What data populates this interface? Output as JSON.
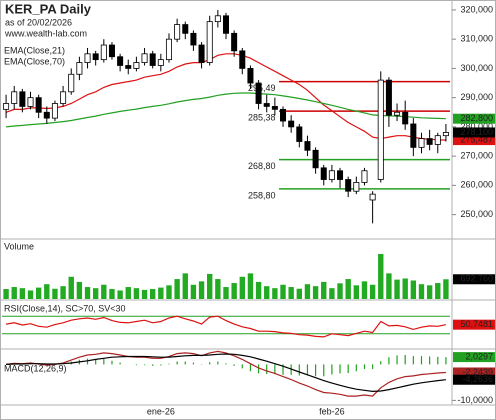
{
  "chart_data": [
    {
      "type": "candlestick",
      "title": "KER_PA Daily",
      "subtitle": "as of 20/02/2026",
      "source": "www.wealth-lab.com",
      "categories": [
        null,
        null,
        null,
        null,
        null,
        null,
        null,
        null,
        null,
        null,
        null,
        null,
        null,
        null,
        null,
        null,
        null,
        null,
        null,
        "ene-26",
        null,
        null,
        null,
        null,
        null,
        null,
        null,
        null,
        null,
        null,
        null,
        null,
        null,
        null,
        null,
        null,
        null,
        null,
        null,
        null,
        "feb-26",
        null,
        null,
        null,
        null,
        null,
        null,
        null,
        null,
        null,
        null,
        null,
        null,
        null,
        null
      ],
      "open": [
        286,
        288,
        292,
        287,
        290,
        285,
        283,
        288,
        292,
        298,
        302,
        305,
        303,
        308,
        304,
        301,
        300,
        302,
        305,
        301,
        303,
        310,
        315,
        312,
        308,
        302,
        316,
        318,
        312,
        306,
        300,
        295,
        288,
        287,
        286,
        282,
        280,
        275,
        272,
        266,
        262,
        265,
        262,
        258,
        261,
        255,
        262,
        296,
        284,
        285,
        281,
        273,
        276,
        274,
        277
      ],
      "high": [
        291,
        294,
        293,
        292,
        291,
        287,
        289,
        294,
        300,
        304,
        307,
        306,
        310,
        309,
        305,
        303,
        304,
        307,
        306,
        305,
        312,
        317,
        316,
        313,
        309,
        318,
        320,
        319,
        313,
        307,
        301,
        296,
        291,
        290,
        287,
        284,
        281,
        277,
        273,
        267,
        267,
        266,
        263,
        263,
        266,
        258,
        299,
        297,
        288,
        289,
        283,
        278,
        279,
        278,
        281
      ],
      "low": [
        283,
        286,
        285,
        286,
        283,
        281,
        282,
        287,
        291,
        296,
        300,
        301,
        302,
        303,
        299,
        298,
        299,
        301,
        300,
        299,
        302,
        309,
        310,
        306,
        300,
        301,
        314,
        310,
        304,
        298,
        293,
        286,
        285,
        284,
        280,
        278,
        273,
        270,
        264,
        260,
        261,
        259,
        256,
        257,
        260,
        247,
        261,
        280,
        282,
        279,
        270,
        271,
        272,
        271,
        275
      ],
      "close": [
        288,
        292,
        287,
        290,
        285,
        283,
        288,
        292,
        298,
        302,
        305,
        303,
        308,
        304,
        301,
        300,
        302,
        305,
        301,
        303,
        310,
        315,
        312,
        308,
        302,
        316,
        318,
        312,
        306,
        300,
        295,
        288,
        287,
        286,
        282,
        280,
        275,
        272,
        266,
        262,
        265,
        262,
        258,
        261,
        265,
        257,
        296,
        284,
        285,
        281,
        273,
        276,
        274,
        277,
        278.1
      ],
      "close_labels": {
        "54": "278,100"
      },
      "up_color": "#ffffff",
      "down_color": "#000000",
      "series": [
        {
          "name": "EMA(Close,21)",
          "color": "#dd1111",
          "values": [
            285,
            286,
            286,
            286.5,
            286.5,
            286.3,
            286.5,
            287,
            288,
            289.5,
            291,
            292,
            293.5,
            294.5,
            295,
            295.5,
            296,
            297,
            297.5,
            298,
            299,
            300.5,
            301.5,
            302,
            302,
            303,
            304.5,
            305,
            305,
            304.5,
            303.5,
            302,
            300.5,
            299,
            297.5,
            296,
            294.5,
            292.5,
            290,
            287.5,
            285.5,
            283.5,
            281.5,
            280,
            278.5,
            276.5,
            276,
            276.5,
            277,
            277,
            276.5,
            276,
            275.8,
            275.6,
            275.487
          ],
          "value_labels": {
            "54": "275,487"
          }
        },
        {
          "name": "EMA(Close,70)",
          "color": "#22a022",
          "values": [
            280,
            280.3,
            280.5,
            280.8,
            281,
            281.2,
            281.5,
            281.8,
            282.2,
            282.7,
            283.2,
            283.7,
            284.3,
            284.8,
            285.3,
            285.7,
            286.1,
            286.6,
            287,
            287.4,
            287.9,
            288.5,
            289,
            289.4,
            289.7,
            290.2,
            290.8,
            291.2,
            291.5,
            291.6,
            291.6,
            291.4,
            291.2,
            291,
            290.6,
            290.2,
            289.7,
            289.2,
            288.6,
            288,
            287.4,
            286.7,
            286,
            285.4,
            284.8,
            284.1,
            283.9,
            283.8,
            283.7,
            283.5,
            283.3,
            283.1,
            283,
            282.9,
            282.8
          ],
          "value_labels": {
            "54": "282,800"
          }
        }
      ],
      "levels": [
        {
          "value": 295.49,
          "label": "295,49",
          "color": "#cc0000"
        },
        {
          "value": 285.38,
          "label": "285,38",
          "color": "#cc0000"
        },
        {
          "value": 268.8,
          "label": "268,80",
          "color": "#22a022"
        },
        {
          "value": 258.8,
          "label": "258,80",
          "color": "#22a022"
        }
      ],
      "ylim": [
        242,
        323.4
      ],
      "yticks": [
        {
          "value": 250,
          "label": "250,000"
        },
        {
          "value": 260,
          "label": "260,000"
        },
        {
          "value": 270,
          "label": "270,000"
        },
        {
          "value": 280,
          "label": "280,000"
        },
        {
          "value": 290,
          "label": "290,000"
        },
        {
          "value": 300,
          "label": "300,000"
        },
        {
          "value": 310,
          "label": "310,000"
        },
        {
          "value": 320,
          "label": "320,000"
        }
      ]
    },
    {
      "type": "bar",
      "title": "Volume",
      "color": "#22aa22",
      "values": [
        350,
        420,
        380,
        300,
        400,
        520,
        360,
        450,
        780,
        600,
        420,
        380,
        500,
        350,
        300,
        420,
        380,
        320,
        350,
        400,
        480,
        700,
        900,
        500,
        620,
        880,
        700,
        420,
        560,
        780,
        900,
        600,
        450,
        380,
        500,
        420,
        360,
        520,
        450,
        600,
        380,
        550,
        700,
        480,
        620,
        500,
        1580,
        900,
        680,
        720,
        650,
        520,
        480,
        560,
        692.76
      ],
      "value_labels": {
        "54": "692,760"
      },
      "ylim": [
        0,
        1650
      ]
    },
    {
      "type": "line",
      "title": "RSI(Close,14), SC>70, SV<30",
      "color": "#dd1111",
      "values": [
        52,
        55,
        50,
        53,
        47,
        45,
        51,
        55,
        61,
        64,
        66,
        63,
        67,
        60,
        56,
        55,
        58,
        61,
        55,
        58,
        66,
        70,
        64,
        59,
        52,
        68,
        70,
        60,
        52,
        46,
        42,
        36,
        36,
        35,
        32,
        31,
        28,
        27,
        24,
        23,
        30,
        28,
        26,
        31,
        36,
        33,
        58,
        48,
        49,
        46,
        40,
        45,
        48,
        47,
        50.7481
      ],
      "value_labels": {
        "54": "50,7481"
      },
      "bands": [
        30,
        70
      ],
      "band_color": "#22a022",
      "ylim": [
        0,
        100
      ]
    },
    {
      "type": "macd",
      "title": "MACD(12,26,9)",
      "series": [
        {
          "color": "#aa2222",
          "values": [
            0,
            0.3,
            0.2,
            0.4,
            0.1,
            -0.2,
            0,
            0.4,
            1.2,
            2,
            2.6,
            2.8,
            3.2,
            3,
            2.6,
            2.2,
            2,
            2,
            1.7,
            1.7,
            2.2,
            3,
            3.2,
            3,
            2.4,
            3.2,
            3.6,
            3.2,
            2.4,
            1.4,
            0.2,
            -1,
            -1.8,
            -2.5,
            -3.4,
            -4.2,
            -5.2,
            -6,
            -7,
            -7.8,
            -8,
            -8.3,
            -8.8,
            -8.8,
            -8.5,
            -8.8,
            -6.5,
            -5,
            -4,
            -3.4,
            -3.2,
            -2.8,
            -2.6,
            -2.4,
            -2.2439
          ],
          "value_labels": {
            "54": "-2,2439"
          }
        },
        {
          "color": "#000000",
          "values": [
            0,
            0.1,
            0.1,
            0.2,
            0.2,
            0.1,
            0.1,
            0.2,
            0.4,
            0.7,
            1,
            1.4,
            1.7,
            2,
            2.1,
            2.2,
            2.2,
            2.2,
            2.1,
            2,
            2,
            2.2,
            2.4,
            2.5,
            2.5,
            2.6,
            2.8,
            2.9,
            2.8,
            2.5,
            2.1,
            1.5,
            0.9,
            0.2,
            -0.5,
            -1.3,
            -2.1,
            -2.9,
            -3.7,
            -4.5,
            -5.2,
            -5.8,
            -6.4,
            -6.9,
            -7.2,
            -7.5,
            -7.4,
            -7,
            -6.5,
            -6,
            -5.5,
            -5.1,
            -4.8,
            -4.5,
            -4.2636
          ],
          "value_labels": {
            "54": "-4,2636"
          }
        }
      ],
      "histogram": {
        "color": "#22a022",
        "values": [
          0,
          0.2,
          0.1,
          0.2,
          -0.1,
          -0.3,
          -0.1,
          0.2,
          0.8,
          1.3,
          1.6,
          1.4,
          1.5,
          1,
          0.5,
          0,
          -0.2,
          -0.2,
          -0.4,
          -0.3,
          0.2,
          0.8,
          0.8,
          0.5,
          -0.1,
          0.6,
          0.8,
          0.3,
          -0.4,
          -1.1,
          -1.9,
          -2.5,
          -2.7,
          -2.7,
          -2.9,
          -2.9,
          -3.1,
          -3.1,
          -3.3,
          -3.3,
          -2.8,
          -2.5,
          -2.4,
          -1.9,
          -1.3,
          -1.3,
          0.9,
          2,
          2.5,
          2.6,
          2.3,
          2.3,
          2.2,
          2.1,
          2.0297
        ],
        "value_labels": {
          "54": "2,0297"
        }
      },
      "ylim": [
        -11,
        4
      ],
      "yticks": [
        {
          "value": -10,
          "label": "-10,0000"
        }
      ]
    }
  ]
}
